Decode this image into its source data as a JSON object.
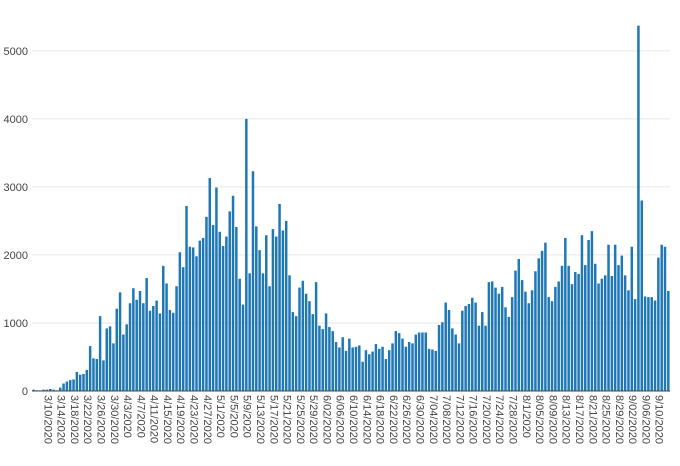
{
  "chart_data": {
    "type": "bar",
    "title": "",
    "xlabel": "",
    "ylabel": "",
    "ylim": [
      0,
      5600
    ],
    "yticks": [
      0,
      1000,
      2000,
      3000,
      4000,
      5000
    ],
    "ytick_labels": [
      "0",
      "1000",
      "2000",
      "3000",
      "4000",
      "5000"
    ],
    "grid": true,
    "legend": "none",
    "bar_color": "#1f77b4",
    "x_tick_labels": [
      "3/10/2020",
      "3/14/2020",
      "3/18/2020",
      "3/22/2020",
      "3/26/2020",
      "3/30/2020",
      "4/3/2020",
      "4/7/2020",
      "4/11/2020",
      "4/15/2020",
      "4/19/2020",
      "4/23/2020",
      "4/27/2020",
      "5/1/2020",
      "5/5/2020",
      "5/9/2020",
      "5/13/2020",
      "5/17/2020",
      "5/21/2020",
      "5/25/2020",
      "5/29/2020",
      "6/02/2020",
      "6/06/2020",
      "6/10/2020",
      "6/14/2020",
      "6/18/2020",
      "6/22/2020",
      "6/26/2020",
      "6/30/2020",
      "7/04/2020",
      "7/08/2020",
      "7/12/2020",
      "7/16/2020",
      "7/20/2020",
      "7/24/2020",
      "7/28/2020",
      "8/1/2020",
      "8/05/2020",
      "8/09/2020",
      "8/13/2020",
      "8/17/2020",
      "8/21/2020",
      "8/25/2020",
      "8/29/2020",
      "9/02/2020",
      "9/06/2020",
      "9/10/2020"
    ],
    "x_start": "3/8/2020",
    "values": [
      20,
      10,
      10,
      20,
      20,
      30,
      20,
      10,
      50,
      110,
      140,
      160,
      170,
      280,
      240,
      250,
      310,
      660,
      480,
      470,
      1100,
      450,
      920,
      950,
      700,
      1210,
      1450,
      830,
      980,
      1290,
      1510,
      1340,
      1470,
      1290,
      1660,
      1180,
      1250,
      1330,
      1140,
      1840,
      1580,
      1190,
      1150,
      1540,
      2040,
      1820,
      2720,
      2120,
      2110,
      1980,
      2210,
      2250,
      2560,
      3130,
      2440,
      2990,
      2340,
      2130,
      2270,
      2640,
      2870,
      2410,
      1650,
      1270,
      4000,
      1730,
      3230,
      2420,
      2070,
      1730,
      2290,
      1540,
      2380,
      2270,
      2750,
      2360,
      2500,
      1700,
      1160,
      1100,
      1520,
      1620,
      1430,
      1320,
      1130,
      1600,
      960,
      910,
      1140,
      940,
      880,
      720,
      640,
      790,
      590,
      770,
      640,
      650,
      670,
      430,
      600,
      540,
      580,
      690,
      620,
      650,
      470,
      600,
      700,
      880,
      850,
      770,
      650,
      720,
      700,
      830,
      860,
      860,
      860,
      620,
      610,
      590,
      970,
      1010,
      1300,
      1190,
      920,
      830,
      700,
      1180,
      1250,
      1280,
      1370,
      1300,
      960,
      1160,
      960,
      1600,
      1610,
      1520,
      1430,
      1530,
      1230,
      1090,
      1380,
      1770,
      1940,
      1630,
      1460,
      1290,
      1480,
      1760,
      1950,
      2060,
      2180,
      1380,
      1320,
      1530,
      1610,
      1840,
      2250,
      1840,
      1570,
      1750,
      1720,
      2290,
      1850,
      2220,
      2350,
      1870,
      1580,
      1650,
      1700,
      2150,
      1690,
      2150,
      1850,
      1990,
      1700,
      1480,
      2120,
      1350,
      5370,
      2800,
      1390,
      1380,
      1380,
      1330,
      1960,
      2150,
      2120,
      1470
    ]
  }
}
